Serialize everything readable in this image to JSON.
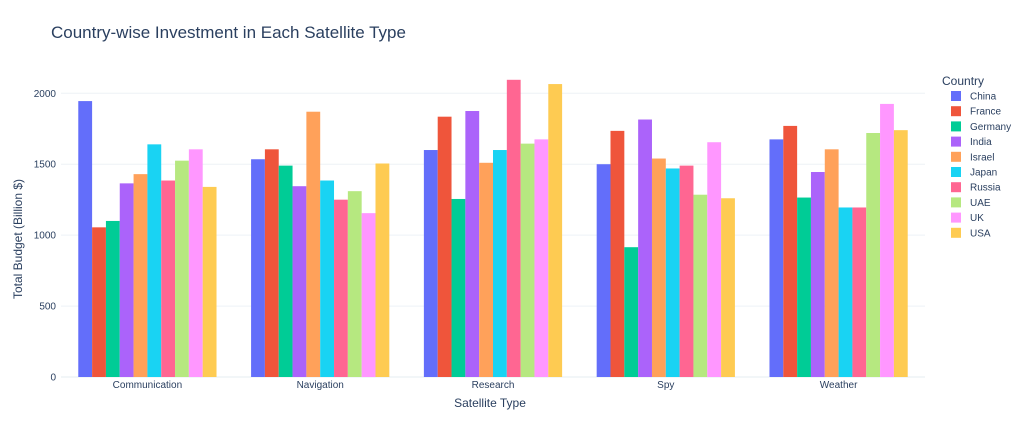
{
  "chart_data": {
    "type": "bar",
    "title": "Country-wise Investment in Each Satellite Type",
    "xlabel": "Satellite Type",
    "ylabel": "Total Budget (Billion $)",
    "ylim": [
      0,
      2150
    ],
    "yticks": [
      0,
      500,
      1000,
      1500,
      2000
    ],
    "grid": true,
    "legend_title": "Country",
    "legend_position": "right",
    "categories": [
      "Communication",
      "Navigation",
      "Research",
      "Spy",
      "Weather"
    ],
    "series": [
      {
        "name": "China",
        "color": "#636efa",
        "values": [
          1945,
          1535,
          1600,
          1500,
          1675
        ]
      },
      {
        "name": "France",
        "color": "#ef553b",
        "values": [
          1055,
          1605,
          1835,
          1735,
          1770
        ]
      },
      {
        "name": "Germany",
        "color": "#00cc96",
        "values": [
          1100,
          1490,
          1255,
          915,
          1265
        ]
      },
      {
        "name": "India",
        "color": "#ab63fa",
        "values": [
          1365,
          1345,
          1875,
          1815,
          1445
        ]
      },
      {
        "name": "Israel",
        "color": "#ffa15a",
        "values": [
          1430,
          1870,
          1510,
          1540,
          1605
        ]
      },
      {
        "name": "Japan",
        "color": "#19d3f3",
        "values": [
          1640,
          1385,
          1600,
          1470,
          1195
        ]
      },
      {
        "name": "Russia",
        "color": "#ff6692",
        "values": [
          1385,
          1250,
          2095,
          1490,
          1195
        ]
      },
      {
        "name": "UAE",
        "color": "#b6e880",
        "values": [
          1525,
          1310,
          1645,
          1285,
          1720
        ]
      },
      {
        "name": "UK",
        "color": "#ff97ff",
        "values": [
          1605,
          1155,
          1675,
          1655,
          1925
        ]
      },
      {
        "name": "USA",
        "color": "#fecb52",
        "values": [
          1340,
          1505,
          2065,
          1260,
          1740
        ]
      }
    ]
  }
}
